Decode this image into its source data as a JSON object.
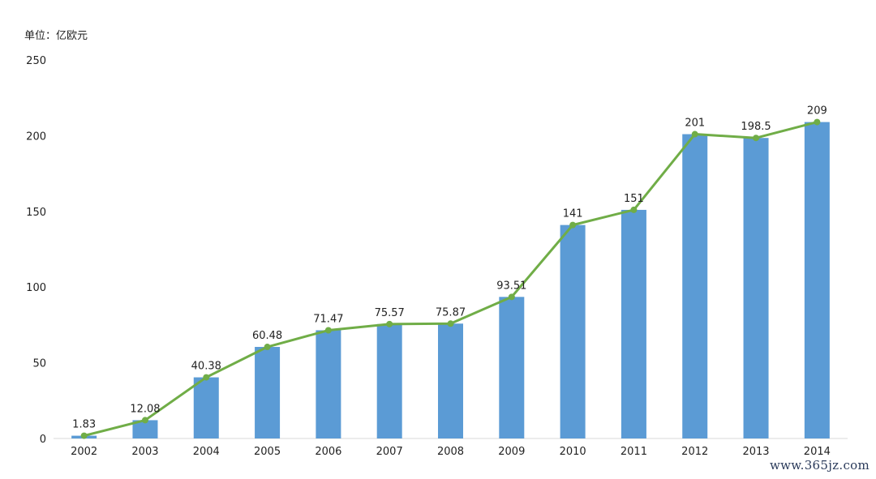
{
  "chart_data": {
    "type": "bar",
    "unit_label": "单位：亿欧元",
    "categories": [
      "2002",
      "2003",
      "2004",
      "2005",
      "2006",
      "2007",
      "2008",
      "2009",
      "2010",
      "2011",
      "2012",
      "2013",
      "2014"
    ],
    "series": [
      {
        "name": "bar",
        "values": [
          1.83,
          12.08,
          40.38,
          60.48,
          71.47,
          75.57,
          75.87,
          93.51,
          141,
          151,
          201,
          198.5,
          209
        ]
      },
      {
        "name": "line",
        "values": [
          1.83,
          12.08,
          40.38,
          60.48,
          71.47,
          75.57,
          75.87,
          93.51,
          141,
          151,
          201,
          198.5,
          209
        ]
      }
    ],
    "data_labels": [
      "1.83",
      "12.08",
      "40.38",
      "60.48",
      "71.47",
      "75.57",
      "75.87",
      "93.51",
      "141",
      "151",
      "201",
      "198.5",
      "209"
    ],
    "yticks": [
      "0",
      "50",
      "100",
      "150",
      "200",
      "250"
    ],
    "ylim": [
      0,
      250
    ],
    "grid": false,
    "colors": {
      "bar": "#5b9bd5",
      "line": "#70ad47"
    }
  },
  "watermark": "www.365jz.com"
}
